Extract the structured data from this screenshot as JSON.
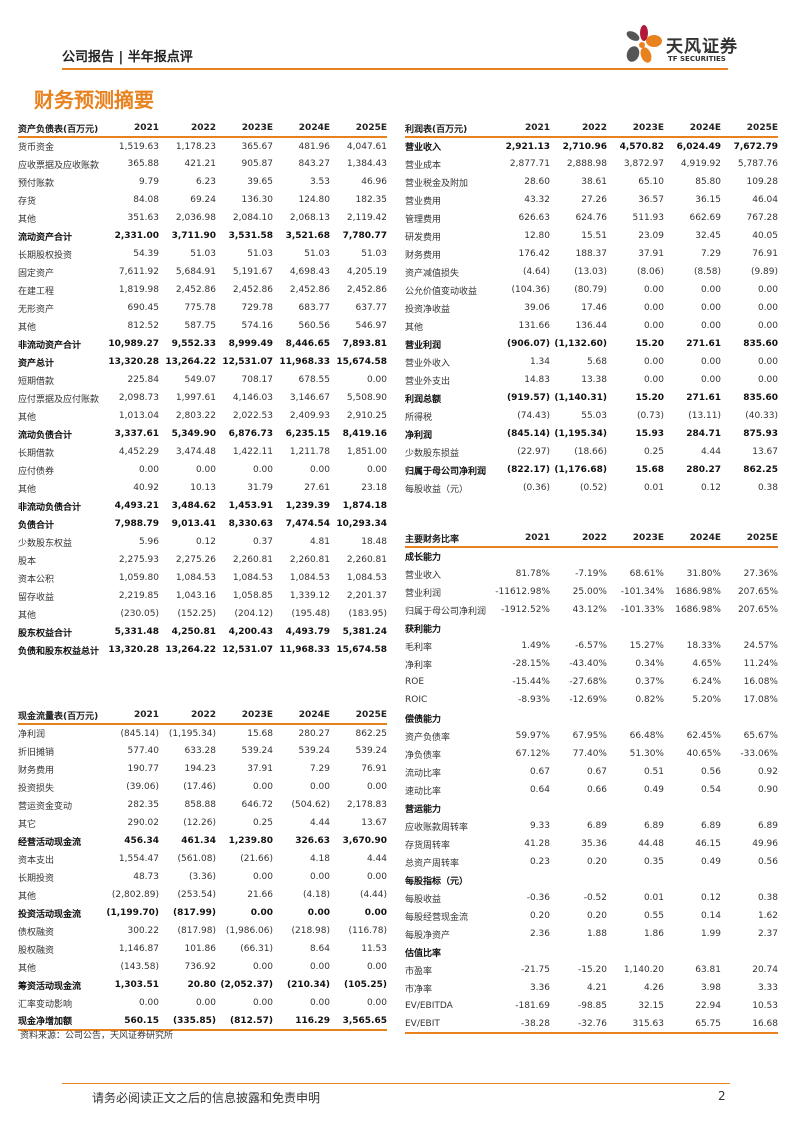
{
  "header": {
    "report_type": "公司报告 | 半年报点评",
    "logo_cn": "天风证券",
    "logo_en": "TF SECURITIES",
    "brand_color": "#e8821e"
  },
  "title": "财务预测摘要",
  "years": [
    "2021",
    "2022",
    "2023E",
    "2024E",
    "2025E"
  ],
  "balance_sheet": {
    "title": "资产负债表(百万元)",
    "rows": [
      [
        "货币资金",
        0,
        [
          "1,519.63",
          "1,178.23",
          "365.67",
          "481.96",
          "4,047.61"
        ]
      ],
      [
        "应收票据及应收账款",
        0,
        [
          "365.88",
          "421.21",
          "905.87",
          "843.27",
          "1,384.43"
        ]
      ],
      [
        "预付账款",
        0,
        [
          "9.79",
          "6.23",
          "39.65",
          "3.53",
          "46.96"
        ]
      ],
      [
        "存货",
        0,
        [
          "84.08",
          "69.24",
          "136.30",
          "124.80",
          "182.35"
        ]
      ],
      [
        "其他",
        0,
        [
          "351.63",
          "2,036.98",
          "2,084.10",
          "2,068.13",
          "2,119.42"
        ]
      ],
      [
        "流动资产合计",
        1,
        [
          "2,331.00",
          "3,711.90",
          "3,531.58",
          "3,521.68",
          "7,780.77"
        ]
      ],
      [
        "长期股权投资",
        0,
        [
          "54.39",
          "51.03",
          "51.03",
          "51.03",
          "51.03"
        ]
      ],
      [
        "固定资产",
        0,
        [
          "7,611.92",
          "5,684.91",
          "5,191.67",
          "4,698.43",
          "4,205.19"
        ]
      ],
      [
        "在建工程",
        0,
        [
          "1,819.98",
          "2,452.86",
          "2,452.86",
          "2,452.86",
          "2,452.86"
        ]
      ],
      [
        "无形资产",
        0,
        [
          "690.45",
          "775.78",
          "729.78",
          "683.77",
          "637.77"
        ]
      ],
      [
        "其他",
        0,
        [
          "812.52",
          "587.75",
          "574.16",
          "560.56",
          "546.97"
        ]
      ],
      [
        "非流动资产合计",
        1,
        [
          "10,989.27",
          "9,552.33",
          "8,999.49",
          "8,446.65",
          "7,893.81"
        ]
      ],
      [
        "资产总计",
        1,
        [
          "13,320.28",
          "13,264.22",
          "12,531.07",
          "11,968.33",
          "15,674.58"
        ]
      ],
      [
        "短期借款",
        0,
        [
          "225.84",
          "549.07",
          "708.17",
          "678.55",
          "0.00"
        ]
      ],
      [
        "应付票据及应付账款",
        0,
        [
          "2,098.73",
          "1,997.61",
          "4,146.03",
          "3,146.67",
          "5,508.90"
        ]
      ],
      [
        "其他",
        0,
        [
          "1,013.04",
          "2,803.22",
          "2,022.53",
          "2,409.93",
          "2,910.25"
        ]
      ],
      [
        "流动负债合计",
        1,
        [
          "3,337.61",
          "5,349.90",
          "6,876.73",
          "6,235.15",
          "8,419.16"
        ]
      ],
      [
        "长期借款",
        0,
        [
          "4,452.29",
          "3,474.48",
          "1,422.11",
          "1,211.78",
          "1,851.00"
        ]
      ],
      [
        "应付债券",
        0,
        [
          "0.00",
          "0.00",
          "0.00",
          "0.00",
          "0.00"
        ]
      ],
      [
        "其他",
        0,
        [
          "40.92",
          "10.13",
          "31.79",
          "27.61",
          "23.18"
        ]
      ],
      [
        "非流动负债合计",
        1,
        [
          "4,493.21",
          "3,484.62",
          "1,453.91",
          "1,239.39",
          "1,874.18"
        ]
      ],
      [
        "负债合计",
        1,
        [
          "7,988.79",
          "9,013.41",
          "8,330.63",
          "7,474.54",
          "10,293.34"
        ]
      ],
      [
        "少数股东权益",
        0,
        [
          "5.96",
          "0.12",
          "0.37",
          "4.81",
          "18.48"
        ]
      ],
      [
        "股本",
        0,
        [
          "2,275.93",
          "2,275.26",
          "2,260.81",
          "2,260.81",
          "2,260.81"
        ]
      ],
      [
        "资本公积",
        0,
        [
          "1,059.80",
          "1,084.53",
          "1,084.53",
          "1,084.53",
          "1,084.53"
        ]
      ],
      [
        "留存收益",
        0,
        [
          "2,219.85",
          "1,043.16",
          "1,058.85",
          "1,339.12",
          "2,201.37"
        ]
      ],
      [
        "其他",
        0,
        [
          "(230.05)",
          "(152.25)",
          "(204.12)",
          "(195.48)",
          "(183.95)"
        ]
      ],
      [
        "股东权益合计",
        1,
        [
          "5,331.48",
          "4,250.81",
          "4,200.43",
          "4,493.79",
          "5,381.24"
        ]
      ],
      [
        "负债和股东权益总计",
        1,
        [
          "13,320.28",
          "13,264.22",
          "12,531.07",
          "11,968.33",
          "15,674.58"
        ]
      ]
    ]
  },
  "cash_flow": {
    "title": "现金流量表(百万元)",
    "rows": [
      [
        "净利润",
        0,
        [
          "(845.14)",
          "(1,195.34)",
          "15.68",
          "280.27",
          "862.25"
        ]
      ],
      [
        "折旧摊销",
        0,
        [
          "577.40",
          "633.28",
          "539.24",
          "539.24",
          "539.24"
        ]
      ],
      [
        "财务费用",
        0,
        [
          "190.77",
          "194.23",
          "37.91",
          "7.29",
          "76.91"
        ]
      ],
      [
        "投资损失",
        0,
        [
          "(39.06)",
          "(17.46)",
          "0.00",
          "0.00",
          "0.00"
        ]
      ],
      [
        "营运资金变动",
        0,
        [
          "282.35",
          "858.88",
          "646.72",
          "(504.62)",
          "2,178.83"
        ]
      ],
      [
        "其它",
        0,
        [
          "290.02",
          "(12.26)",
          "0.25",
          "4.44",
          "13.67"
        ]
      ],
      [
        "经营活动现金流",
        1,
        [
          "456.34",
          "461.34",
          "1,239.80",
          "326.63",
          "3,670.90"
        ]
      ],
      [
        "资本支出",
        0,
        [
          "1,554.47",
          "(561.08)",
          "(21.66)",
          "4.18",
          "4.44"
        ]
      ],
      [
        "长期投资",
        0,
        [
          "48.73",
          "(3.36)",
          "0.00",
          "0.00",
          "0.00"
        ]
      ],
      [
        "其他",
        0,
        [
          "(2,802.89)",
          "(253.54)",
          "21.66",
          "(4.18)",
          "(4.44)"
        ]
      ],
      [
        "投资活动现金流",
        1,
        [
          "(1,199.70)",
          "(817.99)",
          "0.00",
          "0.00",
          "0.00"
        ]
      ],
      [
        "债权融资",
        0,
        [
          "300.22",
          "(817.98)",
          "(1,986.06)",
          "(218.98)",
          "(116.78)"
        ]
      ],
      [
        "股权融资",
        0,
        [
          "1,146.87",
          "101.86",
          "(66.31)",
          "8.64",
          "11.53"
        ]
      ],
      [
        "其他",
        0,
        [
          "(143.58)",
          "736.92",
          "0.00",
          "0.00",
          "0.00"
        ]
      ],
      [
        "筹资活动现金流",
        1,
        [
          "1,303.51",
          "20.80",
          "(2,052.37)",
          "(210.34)",
          "(105.25)"
        ]
      ],
      [
        "汇率变动影响",
        0,
        [
          "0.00",
          "0.00",
          "0.00",
          "0.00",
          "0.00"
        ]
      ],
      [
        "现金净增加额",
        1,
        [
          "560.15",
          "(335.85)",
          "(812.57)",
          "116.29",
          "3,565.65"
        ]
      ]
    ]
  },
  "income": {
    "title": "利润表(百万元)",
    "rows": [
      [
        "营业收入",
        1,
        [
          "2,921.13",
          "2,710.96",
          "4,570.82",
          "6,024.49",
          "7,672.79"
        ]
      ],
      [
        "营业成本",
        0,
        [
          "2,877.71",
          "2,888.98",
          "3,872.97",
          "4,919.92",
          "5,787.76"
        ]
      ],
      [
        "营业税金及附加",
        0,
        [
          "28.60",
          "38.61",
          "65.10",
          "85.80",
          "109.28"
        ]
      ],
      [
        "营业费用",
        0,
        [
          "43.32",
          "27.26",
          "36.57",
          "36.15",
          "46.04"
        ]
      ],
      [
        "管理费用",
        0,
        [
          "626.63",
          "624.76",
          "511.93",
          "662.69",
          "767.28"
        ]
      ],
      [
        "研发费用",
        0,
        [
          "12.80",
          "15.51",
          "23.09",
          "32.45",
          "40.05"
        ]
      ],
      [
        "财务费用",
        0,
        [
          "176.42",
          "188.37",
          "37.91",
          "7.29",
          "76.91"
        ]
      ],
      [
        "资产减值损失",
        0,
        [
          "(4.64)",
          "(13.03)",
          "(8.06)",
          "(8.58)",
          "(9.89)"
        ]
      ],
      [
        "公允价值变动收益",
        0,
        [
          "(104.36)",
          "(80.79)",
          "0.00",
          "0.00",
          "0.00"
        ]
      ],
      [
        "投资净收益",
        0,
        [
          "39.06",
          "17.46",
          "0.00",
          "0.00",
          "0.00"
        ]
      ],
      [
        "其他",
        0,
        [
          "131.66",
          "136.44",
          "0.00",
          "0.00",
          "0.00"
        ]
      ],
      [
        "营业利润",
        1,
        [
          "(906.07)",
          "(1,132.60)",
          "15.20",
          "271.61",
          "835.60"
        ]
      ],
      [
        "营业外收入",
        0,
        [
          "1.34",
          "5.68",
          "0.00",
          "0.00",
          "0.00"
        ]
      ],
      [
        "营业外支出",
        0,
        [
          "14.83",
          "13.38",
          "0.00",
          "0.00",
          "0.00"
        ]
      ],
      [
        "利润总额",
        1,
        [
          "(919.57)",
          "(1,140.31)",
          "15.20",
          "271.61",
          "835.60"
        ]
      ],
      [
        "所得税",
        0,
        [
          "(74.43)",
          "55.03",
          "(0.73)",
          "(13.11)",
          "(40.33)"
        ]
      ],
      [
        "净利润",
        1,
        [
          "(845.14)",
          "(1,195.34)",
          "15.93",
          "284.71",
          "875.93"
        ]
      ],
      [
        "少数股东损益",
        0,
        [
          "(22.97)",
          "(18.66)",
          "0.25",
          "4.44",
          "13.67"
        ]
      ],
      [
        "归属于母公司净利润",
        1,
        [
          "(822.17)",
          "(1,176.68)",
          "15.68",
          "280.27",
          "862.25"
        ]
      ],
      [
        "每股收益（元）",
        0,
        [
          "(0.36)",
          "(0.52)",
          "0.01",
          "0.12",
          "0.38"
        ]
      ]
    ]
  },
  "ratios": {
    "title": "主要财务比率",
    "rows": [
      [
        "成长能力",
        2,
        []
      ],
      [
        "营业收入",
        0,
        [
          "81.78%",
          "-7.19%",
          "68.61%",
          "31.80%",
          "27.36%"
        ]
      ],
      [
        "营业利润",
        0,
        [
          "-11612.98%",
          "25.00%",
          "-101.34%",
          "1686.98%",
          "207.65%"
        ]
      ],
      [
        "归属于母公司净利润",
        0,
        [
          "-1912.52%",
          "43.12%",
          "-101.33%",
          "1686.98%",
          "207.65%"
        ]
      ],
      [
        "获利能力",
        2,
        []
      ],
      [
        "毛利率",
        0,
        [
          "1.49%",
          "-6.57%",
          "15.27%",
          "18.33%",
          "24.57%"
        ]
      ],
      [
        "净利率",
        0,
        [
          "-28.15%",
          "-43.40%",
          "0.34%",
          "4.65%",
          "11.24%"
        ]
      ],
      [
        "ROE",
        0,
        [
          "-15.44%",
          "-27.68%",
          "0.37%",
          "6.24%",
          "16.08%"
        ]
      ],
      [
        "ROIC",
        0,
        [
          "-8.93%",
          "-12.69%",
          "0.82%",
          "5.20%",
          "17.08%"
        ]
      ],
      [
        "偿债能力",
        2,
        []
      ],
      [
        "资产负债率",
        0,
        [
          "59.97%",
          "67.95%",
          "66.48%",
          "62.45%",
          "65.67%"
        ]
      ],
      [
        "净负债率",
        0,
        [
          "67.12%",
          "77.40%",
          "51.30%",
          "40.65%",
          "-33.06%"
        ]
      ],
      [
        "流动比率",
        0,
        [
          "0.67",
          "0.67",
          "0.51",
          "0.56",
          "0.92"
        ]
      ],
      [
        "速动比率",
        0,
        [
          "0.64",
          "0.66",
          "0.49",
          "0.54",
          "0.90"
        ]
      ],
      [
        "营运能力",
        2,
        []
      ],
      [
        "应收账款周转率",
        0,
        [
          "9.33",
          "6.89",
          "6.89",
          "6.89",
          "6.89"
        ]
      ],
      [
        "存货周转率",
        0,
        [
          "41.28",
          "35.36",
          "44.48",
          "46.15",
          "49.96"
        ]
      ],
      [
        "总资产周转率",
        0,
        [
          "0.23",
          "0.20",
          "0.35",
          "0.49",
          "0.56"
        ]
      ],
      [
        "每股指标（元）",
        2,
        []
      ],
      [
        "每股收益",
        0,
        [
          "-0.36",
          "-0.52",
          "0.01",
          "0.12",
          "0.38"
        ]
      ],
      [
        "每股经营现金流",
        0,
        [
          "0.20",
          "0.20",
          "0.55",
          "0.14",
          "1.62"
        ]
      ],
      [
        "每股净资产",
        0,
        [
          "2.36",
          "1.88",
          "1.86",
          "1.99",
          "2.37"
        ]
      ],
      [
        "估值比率",
        2,
        []
      ],
      [
        "市盈率",
        0,
        [
          "-21.75",
          "-15.20",
          "1,140.20",
          "63.81",
          "20.74"
        ]
      ],
      [
        "市净率",
        0,
        [
          "3.36",
          "4.21",
          "4.26",
          "3.98",
          "3.33"
        ]
      ],
      [
        "EV/EBITDA",
        0,
        [
          "-181.69",
          "-98.85",
          "32.15",
          "22.94",
          "10.53"
        ]
      ],
      [
        "EV/EBIT",
        0,
        [
          "-38.28",
          "-32.76",
          "315.63",
          "65.75",
          "16.68"
        ]
      ]
    ]
  },
  "source": "资料来源：公司公告，天风证券研究所",
  "footer": {
    "disclaimer": "请务必阅读正文之后的信息披露和免责申明",
    "page": "2"
  }
}
